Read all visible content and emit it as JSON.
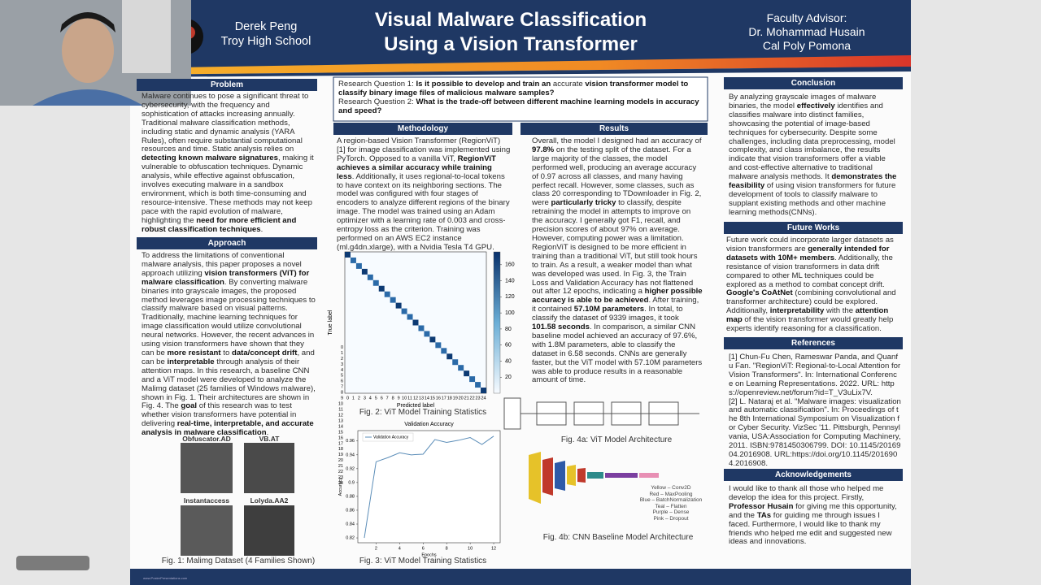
{
  "header": {
    "author": "Derek Peng",
    "school": "Troy High School",
    "title_line1": "Visual Malware Classification",
    "title_line2": "Using a Vision Transformer",
    "advisor_label": "Faculty Advisor:",
    "advisor_name": "Dr. Mohammad Husain",
    "advisor_school": "Cal Poly Pomona"
  },
  "problem": {
    "heading": "Problem",
    "runs": [
      "Malware continues to pose a significant threat to cybersecurity, with the frequency and sophistication of attacks increasing annually. Traditional malware classification methods, including static and dynamic analysis (YARA Rules), often require substantial computational resources and time. Static analysis relies on ",
      "detecting known malware signatures",
      ", making it vulnerable to obfuscation techniques. Dynamic analysis, while effective against obfuscation, involves executing malware in a sandbox environment, which is both time-consuming and resource-intensive. These methods may not keep pace with the rapid evolution of malware, highlighting the ",
      "need for more efficient and robust classification techniques",
      "."
    ]
  },
  "approach": {
    "heading": "Approach",
    "runs": [
      "To address the limitations of conventional malware analysis, this paper proposes a novel approach utilizing ",
      "vision transformers (ViT) for malware classification",
      ". By converting malware binaries into grayscale images, the proposed method leverages image processing techniques to classify malware based on visual patterns. Traditionally, machine learning techniques for image classification would utilize convolutional neural networks. However, the recent advances in using vision transformers have shown that they can be ",
      "more resistant",
      " to ",
      "data/concept drift",
      ", and can be ",
      "interpretable",
      " through analysis of their attention maps. In this research, a baseline CNN and a ViT model were developed to analyze the Malimg dataset (25 families of Windows malware), shown in Fig. 1. Their architectures are shown in Fig. 4. The ",
      "goal",
      " of this research was to test whether vision transformers have potential in delivering ",
      "real-time, interpretable, and accurate analysis in malware classification",
      "."
    ]
  },
  "dataset_figure": {
    "samples": [
      "Obfuscator.AD",
      "VB.AT",
      "Instantaccess",
      "Lolyda.AA2"
    ],
    "caption": "Fig. 1: Malimg Dataset (4 Families Shown)"
  },
  "research_questions": [
    [
      "Research Question 1:",
      " Is it possible to develop and train an ",
      "accurate",
      " vision transformer model to classify binary image files of malicious malware samples?"
    ],
    [
      "Research Question 2:",
      " What is the trade-off between different machine learning models in accuracy and speed?"
    ]
  ],
  "methodology": {
    "heading": "Methodology",
    "runs": [
      "A region-based Vision Transformer (RegionViT) [1] for image classification was implemented using PyTorch. Opposed to a vanilla ViT, ",
      "RegionViT achieves a similar accuracy while training less",
      ". Additionally, it uses regional-to-local tokens to have context on its neighboring sections. The model was configured with four stages of encoders to analyze different regions of the binary image. The model was trained using an Adam optimizer with a learning rate of 0.003 and cross-entropy loss as the criterion. Training was performed on an AWS EC2 instance (ml.g4dn.xlarge), with a Nvidia Tesla T4 GPU."
    ]
  },
  "confusion_matrix": {
    "labels": [
      0,
      1,
      2,
      3,
      4,
      5,
      6,
      7,
      8,
      9,
      10,
      11,
      12,
      13,
      14,
      15,
      16,
      17,
      18,
      19,
      20,
      21,
      22,
      23,
      24
    ],
    "xlabel": "Predicted label",
    "ylabel": "True label",
    "colorbar_lim": [
      0,
      176
    ],
    "colorbar_ticks": [
      20,
      40,
      60,
      80,
      100,
      120,
      140,
      160
    ],
    "caption": "Fig. 2: ViT Model Training Statistics"
  },
  "accuracy_chart": {
    "type": "line",
    "title": "Validation Accuracy",
    "legend": "Validation Accuracy",
    "xlabel": "Epochs",
    "ylabel": "Accuracy",
    "color": "#5b8db8",
    "x": [
      1,
      2,
      3,
      4,
      5,
      6,
      7,
      8,
      9,
      10,
      11,
      12
    ],
    "values": [
      0.82,
      0.93,
      0.936,
      0.943,
      0.94,
      0.941,
      0.962,
      0.958,
      0.961,
      0.965,
      0.955,
      0.967
    ],
    "xlim": [
      0.45,
      12.55
    ],
    "ylim": [
      0.813,
      0.975
    ],
    "xticks": [
      2,
      4,
      6,
      8,
      10,
      12
    ],
    "yticks": [
      0.82,
      0.84,
      0.86,
      0.88,
      0.9,
      0.92,
      0.94,
      0.96
    ],
    "caption": "Fig. 3: ViT Model Training Statistics"
  },
  "results": {
    "heading": "Results",
    "runs": [
      "Overall, the model I designed had an accuracy of ",
      "97.8%",
      " on the testing split of the dataset. For a large majority of the classes, the model performed well, producing an average accuracy of 0.97 across all classes, and many having perfect recall. However, some classes, such as class 20 corresponding to TDownloader in Fig. 2, were ",
      "particularly tricky",
      " to classify, despite retraining the model in attempts to improve on the accuracy. I generally got F1, recall, and precision scores of about 97% on average. However, computing power was a limitation. RegionViT is designed to be more efficient in training than a traditional ViT, but still took hours to train. As a result, a weaker model than what was developed was used. In Fig. 3, the Train Loss and Validation Accuracy has not flattened out after 12 epochs, indicating a ",
      "higher possible accuracy is able to be achieved",
      ". After training, it contained ",
      "57.10M parameters",
      ". In total, to classify the dataset of 9339 images, it took ",
      "101.58 seconds",
      ". In comparison, a similar CNN baseline model achieved an accuracy of 97.6%, with 1.8M parameters, able to classify the dataset in 6.58 seconds. CNNs are generally faster, but the ViT model with 57.10M parameters was able to produce results in a reasonable amount of time."
    ]
  },
  "vit_figure": {
    "caption": "Fig. 4a: ViT Model Architecture"
  },
  "cnn_figure": {
    "legend": [
      "Yellow – Conv2D",
      "Red – MaxPooling",
      "Blue – BatchNormalization",
      "Teal – Flatten",
      "Purple – Dense",
      "Pink – Dropout"
    ],
    "caption": "Fig. 4b: CNN Baseline Model Architecture"
  },
  "conclusion": {
    "heading": "Conclusion",
    "runs": [
      "By analyzing grayscale images of malware binaries, the model ",
      "effectively",
      " identifies and classifies malware into distinct families, showcasing the potential of image-based techniques for cybersecurity. Despite some challenges, including data preprocessing, model complexity, and class imbalance, the results indicate that vision transformers offer a viable and cost-effective alternative to traditional malware analysis methods. It ",
      "demonstrates the feasibility",
      " of using vision transformers for future development of tools to classify malware to supplant existing methods and other machine learning methods(CNNs)."
    ]
  },
  "future_works": {
    "heading": "Future Works",
    "runs": [
      "Future work could incorporate larger datasets as vision transformers are ",
      "generally intended for datasets with 10M+ members",
      ". Additionally, the resistance of vision transformers in data drift compared to other ML techniques could be explored as a method to combat concept drift. ",
      "Google's CoAtNet",
      " (combining convolutional and transformer architecture) could be explored. Additionally, ",
      "interpretability",
      " with the ",
      "attention map",
      " of the vision transformer would greatly help experts identify reasoning for a classification."
    ]
  },
  "references": {
    "heading": "References",
    "items": [
      "[1] Chun-Fu Chen, Rameswar Panda, and Quanfu Fan. \"RegionViT: Regional-to-Local Attention for Vision Transformers\". In: International Conference on Learning Representations. 2022. URL: https://openreview.net/forum?id=T_V3uLix7V.",
      "[2] L. Nataraj et al. \"Malware images: visualization and automatic classification\". In: Proceedings of the 8th International Symposium on Visualization for Cyber Security. VizSec '11. Pittsburgh, Pennsylvania, USA:Association for Computing Machinery, 2011. ISBN:9781450306799. DOI: 10.1145/2016904.2016908. URL:https://doi.org/10.1145/2016904.2016908."
    ]
  },
  "acknowledgements": {
    "heading": "Acknowledgements",
    "runs": [
      "I would like to thank all those who helped me develop the idea for this project. Firstly, ",
      "Professor Husain",
      " for giving me this opportunity, and the ",
      "TAs",
      " for guiding me through issues I faced. Furthermore, I would like to thank my friends who helped me edit and suggested new ideas and innovations."
    ]
  },
  "footer": "www.PosterPresentations.com"
}
